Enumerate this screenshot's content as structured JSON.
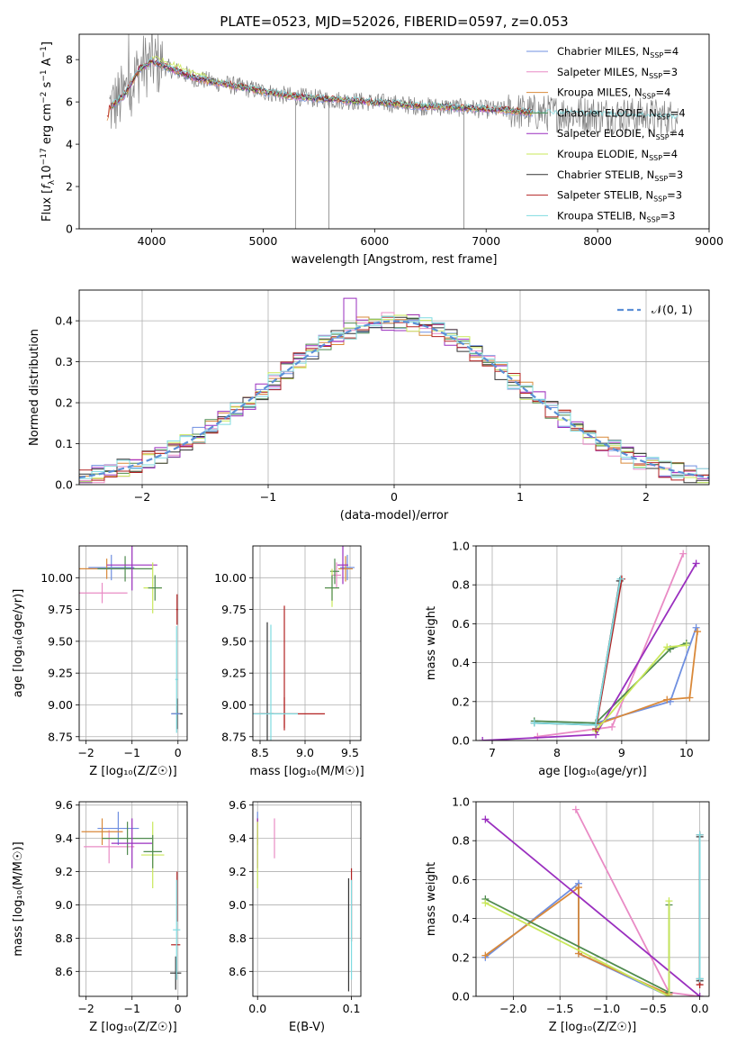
{
  "figure": {
    "title": "PLATE=0523, MJD=52026, FIBERID=0597, z=0.053"
  },
  "colors": {
    "chabrier_miles": "#6f8fe0",
    "salpeter_miles": "#e98bc5",
    "kroupa_miles": "#d9893a",
    "chabrier_elodie": "#4f8a4f",
    "salpeter_elodie": "#9a2fbf",
    "kroupa_elodie": "#c9e85a",
    "chabrier_stelib": "#333333",
    "salpeter_stelib": "#b22222",
    "kroupa_stelib": "#7fdbe0",
    "data": "#808080",
    "normal": "#5b8fd6"
  },
  "chart_data": [
    {
      "id": "spectrum",
      "type": "line",
      "xlabel": "wavelength [Angstrom, rest frame]",
      "ylabel_parts": [
        "Flux [",
        "f",
        "λ",
        "10",
        "−17",
        " erg cm",
        "−2",
        " s",
        "−1",
        " A",
        "−1",
        "]"
      ],
      "xlim": [
        3350,
        9000
      ],
      "ylim": [
        0,
        9.2
      ],
      "xticks": [
        4000,
        5000,
        6000,
        7000,
        8000,
        9000
      ],
      "yticks": [
        0,
        2,
        4,
        6,
        8
      ],
      "series": [
        {
          "name": "Chabrier MILES, N",
          "sub": "SSP",
          "suffix": "=4",
          "color_key": "chabrier_miles"
        },
        {
          "name": "Salpeter MILES, N",
          "sub": "SSP",
          "suffix": "=3",
          "color_key": "salpeter_miles"
        },
        {
          "name": "Kroupa MILES, N",
          "sub": "SSP",
          "suffix": "=4",
          "color_key": "kroupa_miles"
        },
        {
          "name": "Chabrier ELODIE, N",
          "sub": "SSP",
          "suffix": "=4",
          "color_key": "chabrier_elodie"
        },
        {
          "name": "Salpeter ELODIE, N",
          "sub": "SSP",
          "suffix": "=4",
          "color_key": "salpeter_elodie"
        },
        {
          "name": "Kroupa ELODIE, N",
          "sub": "SSP",
          "suffix": "=4",
          "color_key": "kroupa_elodie"
        },
        {
          "name": "Chabrier STELIB, N",
          "sub": "SSP",
          "suffix": "=3",
          "color_key": "chabrier_stelib"
        },
        {
          "name": "Salpeter STELIB, N",
          "sub": "SSP",
          "suffix": "=3",
          "color_key": "salpeter_stelib"
        },
        {
          "name": "Kroupa STELIB, N",
          "sub": "SSP",
          "suffix": "=3",
          "color_key": "kroupa_stelib"
        }
      ],
      "model_trend": [
        [
          3620,
          5.7
        ],
        [
          3750,
          6.3
        ],
        [
          3900,
          7.6
        ],
        [
          4000,
          7.9
        ],
        [
          4200,
          7.5
        ],
        [
          4400,
          7.1
        ],
        [
          4600,
          6.9
        ],
        [
          4800,
          6.7
        ],
        [
          5000,
          6.5
        ],
        [
          5200,
          6.3
        ],
        [
          5500,
          6.15
        ],
        [
          5800,
          6.05
        ],
        [
          6100,
          5.95
        ],
        [
          6400,
          5.8
        ],
        [
          6700,
          5.75
        ],
        [
          7000,
          5.65
        ],
        [
          7200,
          5.6
        ],
        [
          7400,
          5.5
        ],
        [
          7700,
          5.45
        ],
        [
          8000,
          5.4
        ],
        [
          8300,
          5.35
        ],
        [
          8700,
          5.25
        ]
      ],
      "legend": "top-right",
      "grid": false
    },
    {
      "id": "residuals",
      "type": "line",
      "xlabel": "(data-model)/error",
      "ylabel": "Normed distribution",
      "xlim": [
        -2.5,
        2.5
      ],
      "ylim": [
        0,
        0.475
      ],
      "xticks": [
        -2,
        -1,
        0,
        1,
        2
      ],
      "yticks": [
        0.0,
        0.1,
        0.2,
        0.3,
        0.4
      ],
      "step_width": 0.1,
      "normal_label": "𝒩(0, 1)",
      "legend": "top-right",
      "grid": true
    },
    {
      "id": "age_vs_Z",
      "type": "scatter",
      "xlabel": "Z [log₁₀(Z/Z☉)]",
      "ylabel": "age  [log₁₀(age/yr)]",
      "xlim": [
        -2.15,
        0.2
      ],
      "ylim": [
        8.72,
        10.25
      ],
      "xticks": [
        -2,
        -1,
        0
      ],
      "yticks": [
        8.75,
        9.0,
        9.25,
        9.5,
        9.75,
        10.0
      ],
      "grid": true,
      "points": [
        {
          "c": "chabrier_miles",
          "x": -1.45,
          "y": 10.08,
          "xe": 0.5,
          "ye": 0.1
        },
        {
          "c": "salpeter_miles",
          "x": -1.65,
          "y": 9.88,
          "xe": 0.55,
          "ye": 0.08
        },
        {
          "c": "kroupa_miles",
          "x": -1.55,
          "y": 10.07,
          "xe": 0.6,
          "ye": 0.08
        },
        {
          "c": "chabrier_elodie",
          "x": -1.15,
          "y": 10.07,
          "xe": 0.6,
          "ye": 0.1
        },
        {
          "c": "salpeter_elodie",
          "x": -1.0,
          "y": 10.1,
          "xe": 0.55,
          "ye": 0.2
        },
        {
          "c": "kroupa_elodie",
          "x": -0.55,
          "y": 9.92,
          "xe": 0.2,
          "ye": 0.2
        },
        {
          "c": "chabrier_elodie",
          "x": -0.5,
          "y": 9.92,
          "xe": 0.15,
          "ye": 0.1
        },
        {
          "c": "chabrier_stelib",
          "x": -0.02,
          "y": 8.93,
          "xe": 0.12,
          "ye": 0.12
        },
        {
          "c": "salpeter_stelib",
          "x": -0.02,
          "y": 9.75,
          "xe": 0.02,
          "ye": 0.12
        },
        {
          "c": "kroupa_stelib",
          "x": -0.03,
          "y": 9.2,
          "xe": 0.03,
          "ye": 0.42
        },
        {
          "c": "chabrier_miles",
          "x": -0.05,
          "y": 8.93,
          "xe": 0.1,
          "ye": 0.0
        }
      ]
    },
    {
      "id": "age_vs_mass",
      "type": "scatter",
      "xlabel": "mass [log₁₀(M/M☉)]",
      "ylabel": "",
      "xlim": [
        8.42,
        9.62
      ],
      "ylim": [
        8.72,
        10.25
      ],
      "xticks": [
        8.5,
        9.0,
        9.5
      ],
      "yticks": [
        8.75,
        9.0,
        9.25,
        9.5,
        9.75,
        10.0
      ],
      "grid": true,
      "points": [
        {
          "c": "chabrier_miles",
          "x": 9.47,
          "y": 10.08,
          "xe": 0.08,
          "ye": 0.1
        },
        {
          "c": "salpeter_miles",
          "x": 9.35,
          "y": 10.02,
          "xe": 0.05,
          "ye": 0.1
        },
        {
          "c": "kroupa_miles",
          "x": 9.45,
          "y": 10.07,
          "xe": 0.08,
          "ye": 0.1
        },
        {
          "c": "chabrier_elodie",
          "x": 9.33,
          "y": 10.05,
          "xe": 0.05,
          "ye": 0.1
        },
        {
          "c": "salpeter_elodie",
          "x": 9.42,
          "y": 10.1,
          "xe": 0.06,
          "ye": 0.15
        },
        {
          "c": "kroupa_elodie",
          "x": 9.3,
          "y": 9.92,
          "xe": 0.08,
          "ye": 0.15
        },
        {
          "c": "chabrier_elodie",
          "x": 9.3,
          "y": 9.92,
          "xe": 0.08,
          "ye": 0.1
        },
        {
          "c": "chabrier_stelib",
          "x": 8.58,
          "y": 8.93,
          "xe": 0.07,
          "ye": 0.72
        },
        {
          "c": "salpeter_stelib",
          "x": 8.77,
          "y": 8.93,
          "xe": 0.45,
          "ye": 0.13
        },
        {
          "c": "salpeter_stelib",
          "x": 8.77,
          "y": 9.3,
          "xe": 0.0,
          "ye": 0.48
        },
        {
          "c": "kroupa_stelib",
          "x": 8.62,
          "y": 8.93,
          "xe": 0.3,
          "ye": 0.7
        }
      ]
    },
    {
      "id": "weight_vs_age",
      "type": "line",
      "xlabel": "age  [log₁₀(age/yr)]",
      "ylabel": "mass weight",
      "xlim": [
        6.75,
        10.35
      ],
      "ylim": [
        0,
        1.0
      ],
      "xticks": [
        7,
        8,
        9,
        10
      ],
      "yticks": [
        0.0,
        0.2,
        0.4,
        0.6,
        0.8,
        1.0
      ],
      "grid": true,
      "series": [
        {
          "c": "chabrier_miles",
          "pts": [
            [
              8.6,
              0.09
            ],
            [
              9.75,
              0.2
            ],
            [
              10.15,
              0.58
            ]
          ]
        },
        {
          "c": "salpeter_miles",
          "pts": [
            [
              7.7,
              0.02
            ],
            [
              8.85,
              0.07
            ],
            [
              9.95,
              0.96
            ]
          ]
        },
        {
          "c": "kroupa_miles",
          "pts": [
            [
              8.6,
              0.08
            ],
            [
              9.7,
              0.21
            ],
            [
              10.05,
              0.22
            ],
            [
              10.17,
              0.56
            ]
          ]
        },
        {
          "c": "chabrier_elodie",
          "pts": [
            [
              7.65,
              0.1
            ],
            [
              8.6,
              0.09
            ],
            [
              9.75,
              0.47
            ],
            [
              10.0,
              0.5
            ]
          ]
        },
        {
          "c": "salpeter_elodie",
          "pts": [
            [
              6.85,
              0.0
            ],
            [
              8.6,
              0.03
            ],
            [
              10.15,
              0.91
            ]
          ]
        },
        {
          "c": "kroupa_elodie",
          "pts": [
            [
              8.6,
              0.05
            ],
            [
              9.7,
              0.48
            ],
            [
              10.0,
              0.49
            ]
          ]
        },
        {
          "c": "chabrier_stelib",
          "pts": [
            [
              7.65,
              0.09
            ],
            [
              8.6,
              0.08
            ],
            [
              8.97,
              0.82
            ]
          ]
        },
        {
          "c": "salpeter_stelib",
          "pts": [
            [
              8.6,
              0.06
            ],
            [
              9.0,
              0.83
            ]
          ]
        },
        {
          "c": "kroupa_stelib",
          "pts": [
            [
              7.65,
              0.09
            ],
            [
              8.6,
              0.08
            ],
            [
              8.98,
              0.83
            ]
          ]
        }
      ]
    },
    {
      "id": "mass_vs_Z",
      "type": "scatter",
      "xlabel": "Z [log₁₀(Z/Z☉)]",
      "ylabel": "mass [log₁₀(M/M☉)]",
      "xlim": [
        -2.15,
        0.2
      ],
      "ylim": [
        8.45,
        9.62
      ],
      "xticks": [
        -2,
        -1,
        0
      ],
      "yticks": [
        8.6,
        8.8,
        9.0,
        9.2,
        9.4,
        9.6
      ],
      "grid": true,
      "points": [
        {
          "c": "chabrier_miles",
          "x": -1.3,
          "y": 9.46,
          "xe": 0.45,
          "ye": 0.1
        },
        {
          "c": "salpeter_miles",
          "x": -1.5,
          "y": 9.35,
          "xe": 0.55,
          "ye": 0.1
        },
        {
          "c": "kroupa_miles",
          "x": -1.65,
          "y": 9.44,
          "xe": 0.45,
          "ye": 0.08
        },
        {
          "c": "chabrier_elodie",
          "x": -1.1,
          "y": 9.4,
          "xe": 0.55,
          "ye": 0.1
        },
        {
          "c": "salpeter_elodie",
          "x": -1.0,
          "y": 9.37,
          "xe": 0.45,
          "ye": 0.15
        },
        {
          "c": "kroupa_elodie",
          "x": -0.55,
          "y": 9.3,
          "xe": 0.25,
          "ye": 0.2
        },
        {
          "c": "chabrier_elodie",
          "x": -0.55,
          "y": 9.32,
          "xe": 0.2,
          "ye": 0.1
        },
        {
          "c": "chabrier_stelib",
          "x": -0.05,
          "y": 8.59,
          "xe": 0.12,
          "ye": 0.1
        },
        {
          "c": "salpeter_stelib",
          "x": -0.05,
          "y": 8.76,
          "xe": 0.1,
          "ye": 0.0
        },
        {
          "c": "salpeter_stelib",
          "x": -0.02,
          "y": 9.05,
          "xe": 0.0,
          "ye": 0.15
        },
        {
          "c": "kroupa_stelib",
          "x": -0.03,
          "y": 8.85,
          "xe": 0.08,
          "ye": 0.3
        }
      ]
    },
    {
      "id": "mass_vs_ebv",
      "type": "scatter",
      "xlabel": "E(B-V)",
      "ylabel": "",
      "xlim": [
        -0.005,
        0.11
      ],
      "ylim": [
        8.45,
        9.62
      ],
      "xticks": [
        0.0,
        0.1
      ],
      "yticks": [
        8.6,
        8.8,
        9.0,
        9.2,
        9.4,
        9.6
      ],
      "grid": true,
      "points": [
        {
          "c": "chabrier_miles",
          "x": 0.0,
          "y": 9.46,
          "xe": 0.0,
          "ye": 0.1
        },
        {
          "c": "salpeter_miles",
          "x": 0.018,
          "y": 9.4,
          "xe": 0.0,
          "ye": 0.12
        },
        {
          "c": "kroupa_miles",
          "x": 0.0,
          "y": 9.44,
          "xe": 0.0,
          "ye": 0.08
        },
        {
          "c": "salpeter_elodie",
          "x": 0.0,
          "y": 9.37,
          "xe": 0.0,
          "ye": 0.15
        },
        {
          "c": "kroupa_elodie",
          "x": 0.0,
          "y": 9.3,
          "xe": 0.0,
          "ye": 0.2
        },
        {
          "c": "chabrier_stelib",
          "x": 0.097,
          "y": 8.82,
          "xe": 0.0,
          "ye": 0.34
        },
        {
          "c": "salpeter_stelib",
          "x": 0.1,
          "y": 9.0,
          "xe": 0.0,
          "ye": 0.22
        },
        {
          "c": "kroupa_stelib",
          "x": 0.1,
          "y": 8.85,
          "xe": 0.0,
          "ye": 0.3
        }
      ]
    },
    {
      "id": "weight_vs_Z",
      "type": "line",
      "xlabel": "Z [log₁₀(Z/Z☉)]",
      "ylabel": "mass weight",
      "xlim": [
        -2.4,
        0.1
      ],
      "ylim": [
        0,
        1.0
      ],
      "xticks": [
        -2.0,
        -1.5,
        -1.0,
        -0.5,
        0.0
      ],
      "yticks": [
        0.0,
        0.2,
        0.4,
        0.6,
        0.8,
        1.0
      ],
      "grid": true,
      "series": [
        {
          "c": "chabrier_miles",
          "pts": [
            [
              -2.3,
              0.2
            ],
            [
              -1.3,
              0.58
            ],
            [
              -1.3,
              0.22
            ],
            [
              -0.33,
              0.0
            ]
          ]
        },
        {
          "c": "salpeter_miles",
          "pts": [
            [
              -1.33,
              0.96
            ],
            [
              -0.33,
              0.02
            ],
            [
              0.0,
              0.0
            ]
          ]
        },
        {
          "c": "kroupa_miles",
          "pts": [
            [
              -2.3,
              0.21
            ],
            [
              -1.3,
              0.56
            ],
            [
              -1.3,
              0.22
            ],
            [
              -0.33,
              0.01
            ]
          ]
        },
        {
          "c": "chabrier_elodie",
          "pts": [
            [
              -2.3,
              0.5
            ],
            [
              -0.33,
              0.02
            ],
            [
              -0.33,
              0.47
            ]
          ]
        },
        {
          "c": "salpeter_elodie",
          "pts": [
            [
              -2.3,
              0.91
            ],
            [
              0.0,
              0.0
            ]
          ]
        },
        {
          "c": "kroupa_elodie",
          "pts": [
            [
              -2.3,
              0.48
            ],
            [
              -0.33,
              0.0
            ],
            [
              -0.33,
              0.49
            ]
          ]
        },
        {
          "c": "chabrier_stelib",
          "pts": [
            [
              0.0,
              0.82
            ],
            [
              0.0,
              0.09
            ],
            [
              0.0,
              0.08
            ]
          ]
        },
        {
          "c": "salpeter_stelib",
          "pts": [
            [
              0.0,
              0.83
            ],
            [
              0.0,
              0.06
            ]
          ]
        },
        {
          "c": "kroupa_stelib",
          "pts": [
            [
              0.0,
              0.83
            ],
            [
              0.0,
              0.09
            ]
          ]
        }
      ]
    }
  ]
}
